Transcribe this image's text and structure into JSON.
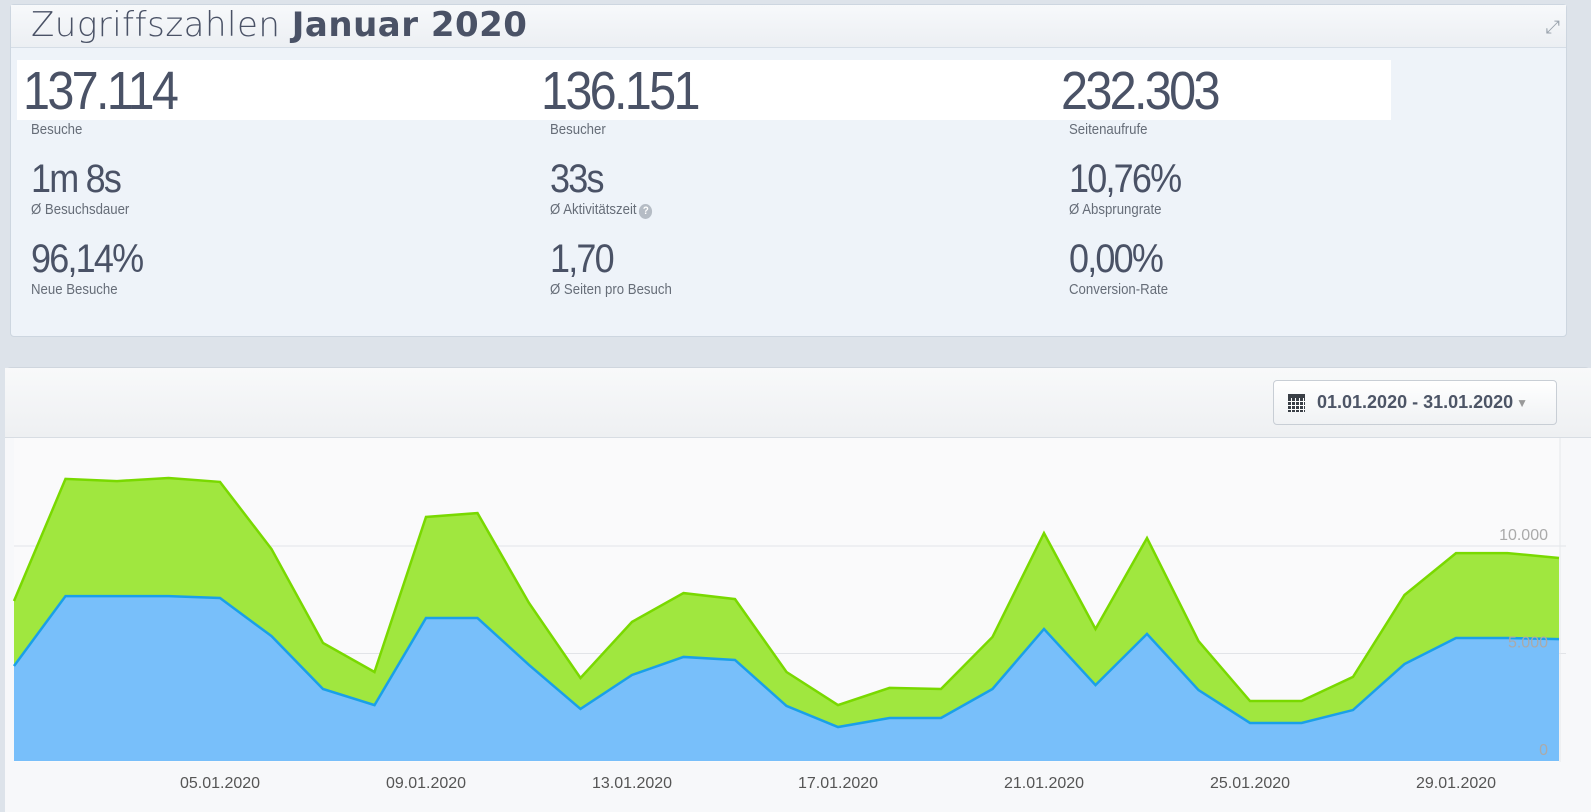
{
  "header": {
    "title_light": "Zugriffszahlen",
    "title_bold": "Januar 2020",
    "expand_icon": "expand-icon"
  },
  "stats": [
    {
      "value": "137.114",
      "label": "Besuche"
    },
    {
      "value": "136.151",
      "label": "Besucher"
    },
    {
      "value": "232.303",
      "label": "Seitenaufrufe"
    },
    {
      "value": "1m 8s",
      "label": "Ø Besuchsdauer"
    },
    {
      "value": "33s",
      "label": "Ø Aktivitätszeit"
    },
    {
      "value": "10,76%",
      "label": "Ø Absprungrate"
    },
    {
      "value": "96,14%",
      "label": "Neue Besuche"
    },
    {
      "value": "1,70",
      "label": "Ø Seiten pro Besuch"
    },
    {
      "value": "0,00%",
      "label": "Conversion-Rate"
    }
  ],
  "help_glyph": "?",
  "date_range": {
    "label": "01.01.2020 - 31.01.2020"
  },
  "chart_data": {
    "type": "area",
    "x_start": "01.01.2020",
    "xtick_labels": [
      "05.01.2020",
      "09.01.2020",
      "13.01.2020",
      "17.01.2020",
      "21.01.2020",
      "25.01.2020",
      "29.01.2020"
    ],
    "xtick_days": [
      5,
      9,
      13,
      17,
      21,
      25,
      29
    ],
    "ytick_labels": [
      "0",
      "5.000",
      "10.000"
    ],
    "ytick_values": [
      0,
      5000,
      10000
    ],
    "ylim": [
      0,
      14000
    ],
    "grid": true,
    "series": [
      {
        "color": "#a0e73f",
        "stroke": "#79d900",
        "values": [
          7440,
          13120,
          13020,
          13160,
          12980,
          9860,
          5490,
          4140,
          11350,
          11530,
          7350,
          3860,
          6470,
          7810,
          7530,
          4140,
          2600,
          3400,
          3350,
          5770,
          10600,
          6140,
          10370,
          5580,
          2790,
          2790,
          3910,
          7720,
          9670,
          9670,
          9440
        ]
      },
      {
        "color": "#78bffa",
        "stroke": "#1aa0e8",
        "values": [
          4420,
          7670,
          7670,
          7670,
          7580,
          5810,
          3350,
          2600,
          6650,
          6650,
          4470,
          2420,
          4000,
          4840,
          4700,
          2560,
          1580,
          2000,
          2000,
          3350,
          6140,
          3530,
          5910,
          3300,
          1770,
          1770,
          2370,
          4510,
          5720,
          5720,
          5670
        ]
      }
    ]
  }
}
